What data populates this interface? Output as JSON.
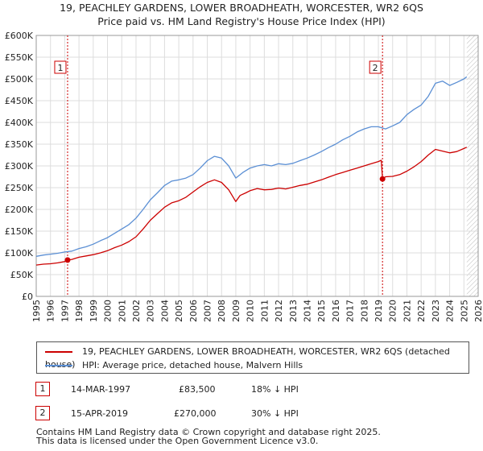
{
  "title_line1": "19, PEACHLEY GARDENS, LOWER BROADHEATH, WORCESTER, WR2 6QS",
  "title_line2": "Price paid vs. HM Land Registry's House Price Index (HPI)",
  "colors": {
    "property": "#cc0000",
    "hpi": "#5b8fd4",
    "grid": "#dddddd",
    "marker_line": "#cc0000",
    "shade": "#dce6f5"
  },
  "chart_data": {
    "type": "line",
    "title": "Price paid vs. HM Land Registry's House Price Index (HPI)",
    "xlabel": "",
    "ylabel": "",
    "xlim": [
      1995,
      2026
    ],
    "ylim": [
      0,
      600000
    ],
    "y_ticks": [
      0,
      50000,
      100000,
      150000,
      200000,
      250000,
      300000,
      350000,
      400000,
      450000,
      500000,
      550000,
      600000
    ],
    "y_tick_labels": [
      "£0",
      "£50K",
      "£100K",
      "£150K",
      "£200K",
      "£250K",
      "£300K",
      "£350K",
      "£400K",
      "£450K",
      "£500K",
      "£550K",
      "£600K"
    ],
    "x_ticks": [
      1995,
      1996,
      1997,
      1998,
      1999,
      2000,
      2001,
      2002,
      2003,
      2004,
      2005,
      2006,
      2007,
      2008,
      2009,
      2010,
      2011,
      2012,
      2013,
      2014,
      2015,
      2016,
      2017,
      2018,
      2019,
      2020,
      2021,
      2022,
      2023,
      2024,
      2025,
      2026
    ],
    "x_tick_labels": [
      "1995",
      "1996",
      "1997",
      "1998",
      "1999",
      "2000",
      "2001",
      "2002",
      "2003",
      "2004",
      "2005",
      "2006",
      "2007",
      "2008",
      "2009",
      "2010",
      "2011",
      "2012",
      "2013",
      "2014",
      "2015",
      "2016",
      "2017",
      "2018",
      "2019",
      "2020",
      "2021",
      "2022",
      "2023",
      "2024",
      "2025",
      "2026"
    ],
    "projection_start": 2025.2,
    "series": [
      {
        "name": "19, PEACHLEY GARDENS, LOWER BROADHEATH, WORCESTER, WR2 6QS (detached house)",
        "color": "#cc0000",
        "x": [
          1995.0,
          1995.5,
          1996.0,
          1996.5,
          1997.0,
          1997.2,
          1997.5,
          1998.0,
          1998.5,
          1999.0,
          1999.5,
          2000.0,
          2000.5,
          2001.0,
          2001.5,
          2002.0,
          2002.5,
          2003.0,
          2003.5,
          2004.0,
          2004.5,
          2005.0,
          2005.5,
          2006.0,
          2006.5,
          2007.0,
          2007.5,
          2008.0,
          2008.5,
          2009.0,
          2009.3,
          2009.7,
          2010.0,
          2010.5,
          2011.0,
          2011.5,
          2012.0,
          2012.5,
          2013.0,
          2013.5,
          2014.0,
          2014.5,
          2015.0,
          2015.5,
          2016.0,
          2016.5,
          2017.0,
          2017.5,
          2018.0,
          2018.5,
          2019.0,
          2019.2,
          2019.29,
          2019.5,
          2020.0,
          2020.5,
          2021.0,
          2021.5,
          2022.0,
          2022.5,
          2023.0,
          2023.5,
          2024.0,
          2024.5,
          2025.0,
          2025.2
        ],
        "values": [
          72000,
          74000,
          75000,
          77000,
          80000,
          83500,
          85000,
          90000,
          93000,
          96000,
          100000,
          105000,
          112000,
          118000,
          126000,
          137000,
          155000,
          175000,
          190000,
          205000,
          215000,
          220000,
          228000,
          240000,
          252000,
          262000,
          268000,
          262000,
          245000,
          218000,
          232000,
          238000,
          243000,
          248000,
          245000,
          246000,
          249000,
          247000,
          251000,
          255000,
          258000,
          263000,
          268000,
          274000,
          280000,
          285000,
          290000,
          295000,
          300000,
          305000,
          310000,
          313000,
          270000,
          275000,
          276000,
          280000,
          288000,
          298000,
          310000,
          325000,
          338000,
          334000,
          330000,
          333000,
          340000,
          343000
        ]
      },
      {
        "name": "HPI: Average price, detached house, Malvern Hills",
        "color": "#5b8fd4",
        "x": [
          1995.0,
          1995.5,
          1996.0,
          1996.5,
          1997.0,
          1997.5,
          1998.0,
          1998.5,
          1999.0,
          1999.5,
          2000.0,
          2000.5,
          2001.0,
          2001.5,
          2002.0,
          2002.5,
          2003.0,
          2003.5,
          2004.0,
          2004.5,
          2005.0,
          2005.5,
          2006.0,
          2006.5,
          2007.0,
          2007.5,
          2008.0,
          2008.5,
          2009.0,
          2009.5,
          2010.0,
          2010.5,
          2011.0,
          2011.5,
          2012.0,
          2012.5,
          2013.0,
          2013.5,
          2014.0,
          2014.5,
          2015.0,
          2015.5,
          2016.0,
          2016.5,
          2017.0,
          2017.5,
          2018.0,
          2018.5,
          2019.0,
          2019.5,
          2020.0,
          2020.5,
          2021.0,
          2021.5,
          2022.0,
          2022.5,
          2023.0,
          2023.5,
          2024.0,
          2024.5,
          2025.0,
          2025.2
        ],
        "values": [
          92000,
          95000,
          97000,
          99000,
          102000,
          104000,
          110000,
          114000,
          120000,
          128000,
          135000,
          145000,
          155000,
          165000,
          180000,
          200000,
          222000,
          238000,
          255000,
          265000,
          268000,
          272000,
          280000,
          295000,
          312000,
          322000,
          318000,
          300000,
          272000,
          285000,
          295000,
          300000,
          303000,
          300000,
          305000,
          303000,
          306000,
          312000,
          318000,
          325000,
          333000,
          342000,
          350000,
          360000,
          368000,
          378000,
          385000,
          390000,
          390000,
          385000,
          392000,
          400000,
          418000,
          430000,
          440000,
          460000,
          490000,
          495000,
          485000,
          492000,
          500000,
          505000
        ]
      }
    ],
    "sales": [
      {
        "label": "1",
        "x": 1997.2,
        "value": 83500
      },
      {
        "label": "2",
        "x": 2019.29,
        "value": 270000
      }
    ]
  },
  "legend": {
    "property_label": "19, PEACHLEY GARDENS, LOWER BROADHEATH, WORCESTER, WR2 6QS (detached house)",
    "hpi_label": "HPI: Average price, detached house, Malvern Hills"
  },
  "sales_table": [
    {
      "num": "1",
      "date": "14-MAR-1997",
      "price": "£83,500",
      "hpi": "18% ↓ HPI"
    },
    {
      "num": "2",
      "date": "15-APR-2019",
      "price": "£270,000",
      "hpi": "30% ↓ HPI"
    }
  ],
  "footer_line1": "Contains HM Land Registry data © Crown copyright and database right 2025.",
  "footer_line2": "This data is licensed under the Open Government Licence v3.0."
}
